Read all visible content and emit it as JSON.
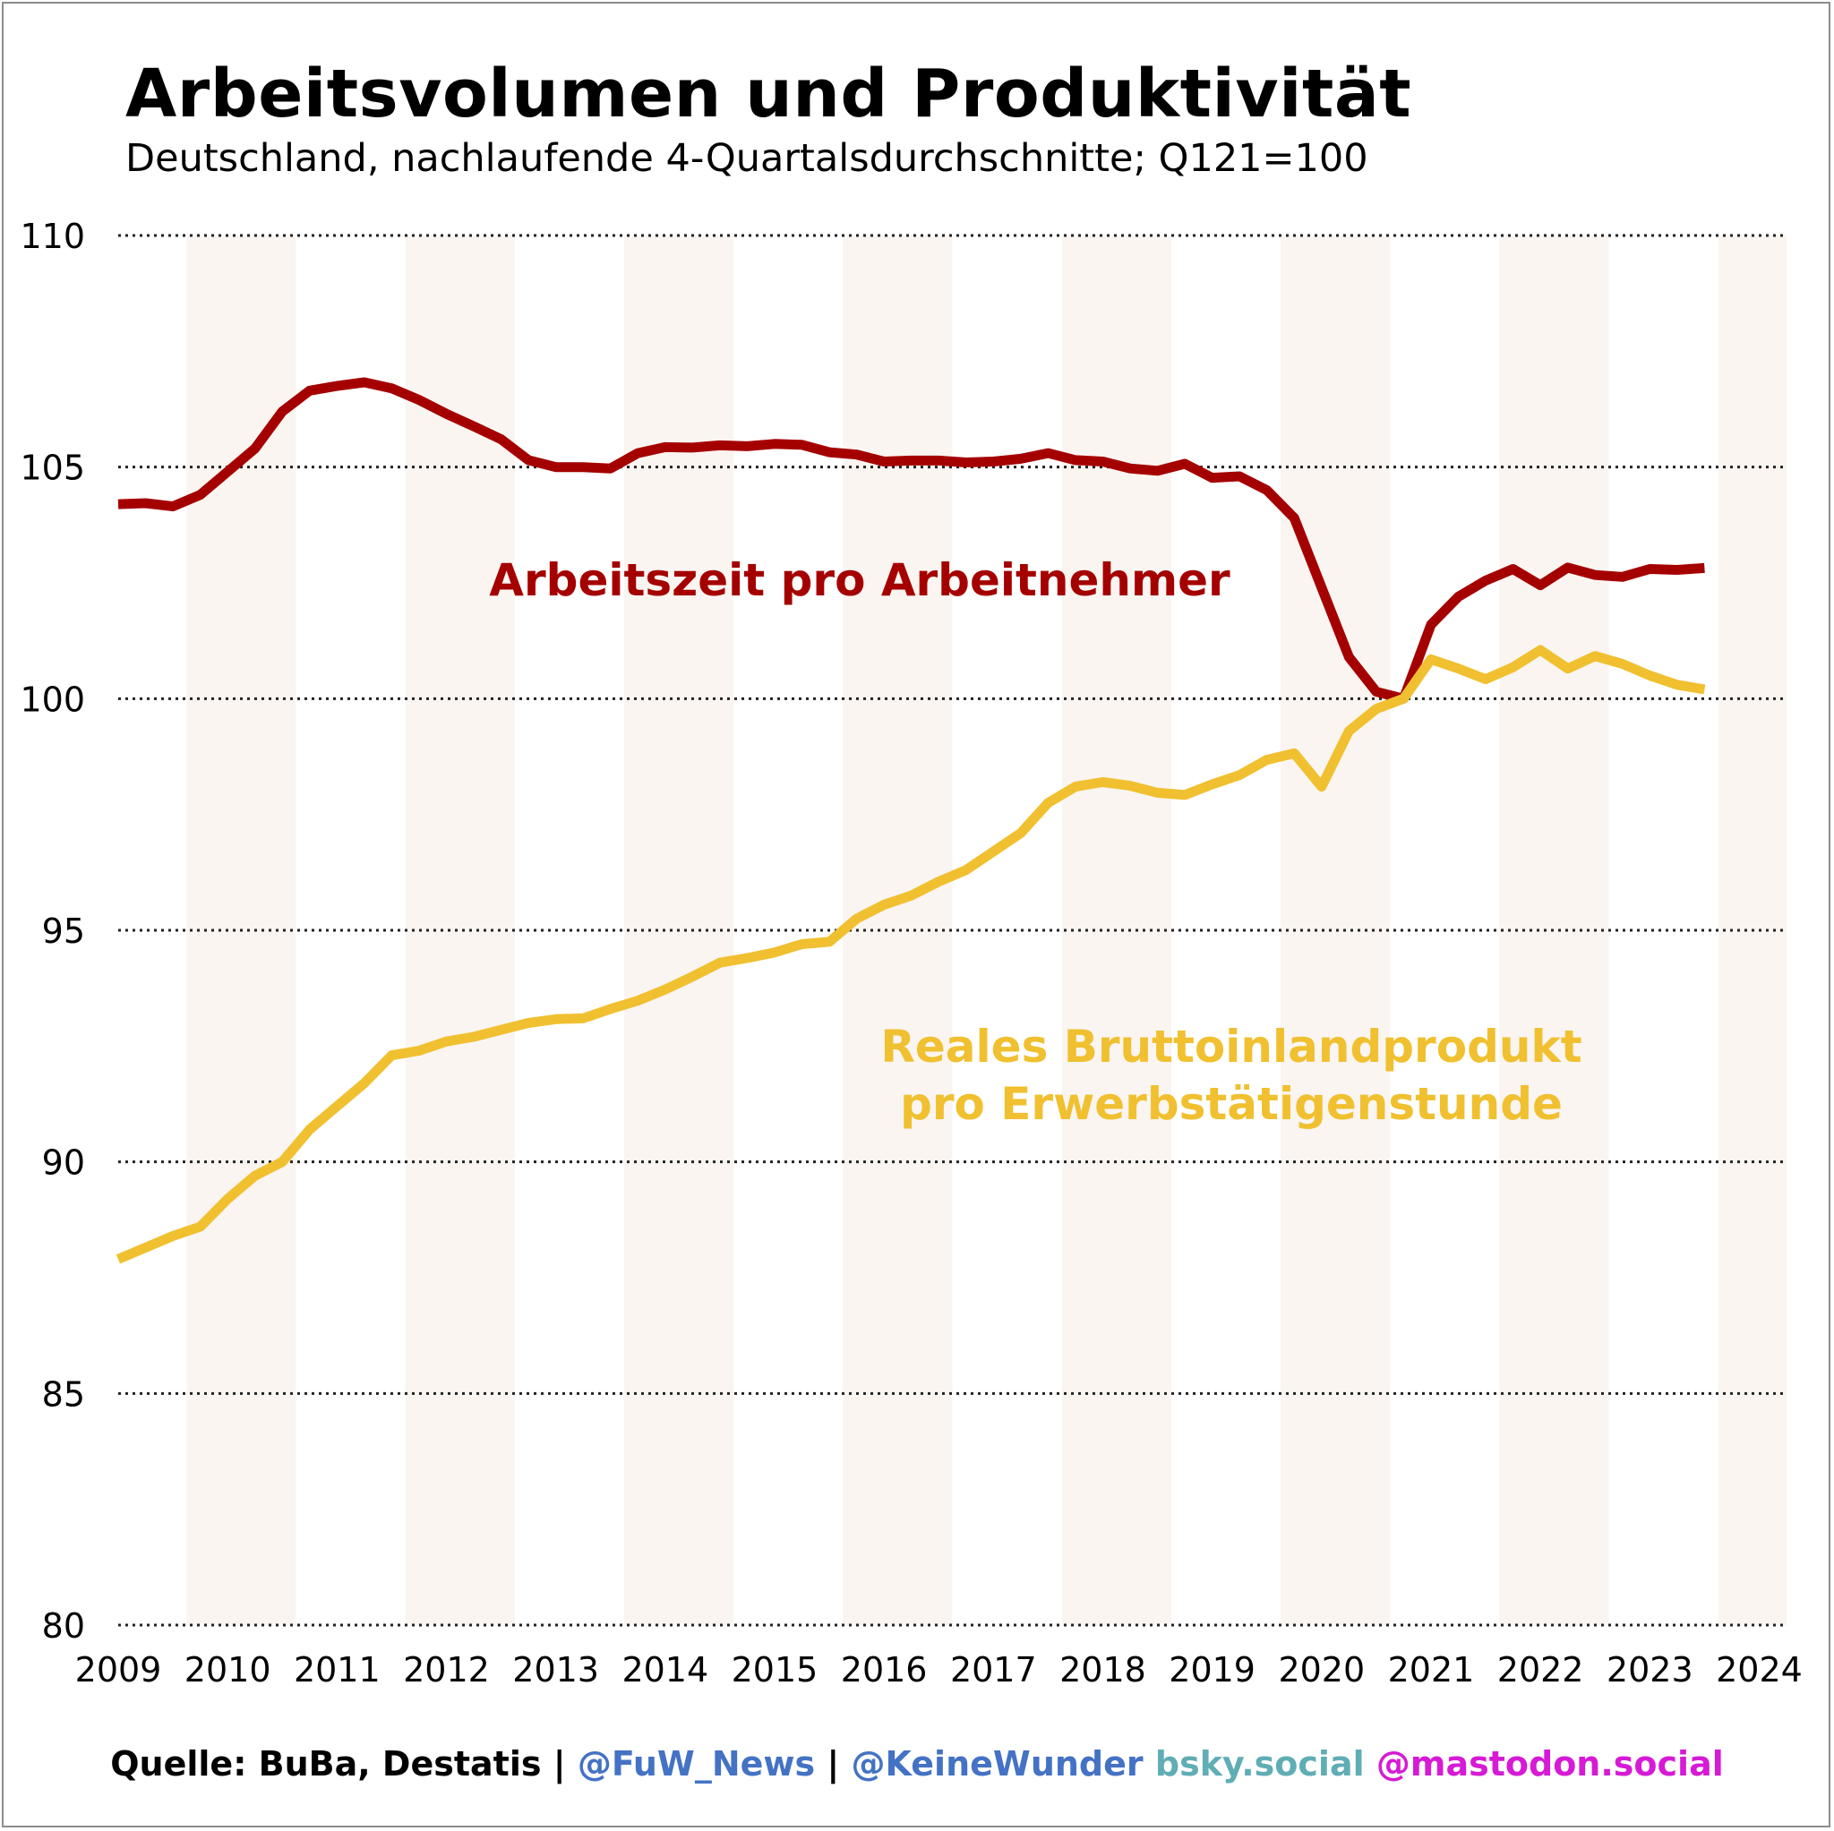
{
  "header": {
    "title": "Arbeitsvolumen und Produktivität",
    "subtitle": "Deutschland, nachlaufende 4-Quartalsdurchschnitte; Q121=100"
  },
  "footer": {
    "source": "Quelle: BuBa, Destatis",
    "sep1": " | ",
    "handle1": "@FuW_News",
    "sep2": " | ",
    "handle2": "@KeineWunder",
    "space": " ",
    "handle3": "bsky.social",
    "space2": " ",
    "handle4": "@mastodon.social"
  },
  "colors": {
    "arbeitszeit": "#a50000",
    "produktivitaet": "#f0c030",
    "band": "#faf5f1",
    "grid": "#222222"
  },
  "chart_data": {
    "type": "line",
    "title": "Arbeitsvolumen und Produktivität",
    "subtitle": "Deutschland, nachlaufende 4-Quartalsdurchschnitte; Q121=100",
    "xlabel": "",
    "ylabel": "",
    "xlim": [
      2009,
      2024.25
    ],
    "ylim": [
      80,
      110
    ],
    "yticks": [
      80,
      85,
      90,
      95,
      100,
      105,
      110
    ],
    "xticks": [
      2009,
      2010,
      2011,
      2012,
      2013,
      2014,
      2015,
      2016,
      2017,
      2018,
      2019,
      2020,
      2021,
      2022,
      2023,
      2024
    ],
    "grid": "horizontal dotted",
    "shaded_years": [
      2009.625,
      2011.625,
      2013.625,
      2015.625,
      2017.625,
      2019.625,
      2021.625,
      2023.625
    ],
    "x_start": 2009,
    "x_step": 0.25,
    "series": [
      {
        "name": "Arbeitszeit pro Arbeitnehmer",
        "label_line1": "Arbeitszeit pro Arbeitnehmer",
        "values": [
          104.2,
          104.22,
          104.15,
          104.4,
          104.9,
          105.4,
          106.2,
          106.65,
          106.75,
          106.83,
          106.7,
          106.45,
          106.15,
          105.88,
          105.6,
          105.15,
          105.0,
          105.0,
          104.97,
          105.3,
          105.43,
          105.42,
          105.47,
          105.45,
          105.5,
          105.48,
          105.32,
          105.27,
          105.12,
          105.14,
          105.14,
          105.1,
          105.12,
          105.18,
          105.3,
          105.15,
          105.12,
          104.97,
          104.92,
          105.07,
          104.77,
          104.8,
          104.5,
          103.9,
          102.4,
          100.9,
          100.15,
          100.0,
          101.6,
          102.2,
          102.55,
          102.8,
          102.45,
          102.83,
          102.67,
          102.63,
          102.8,
          102.78,
          102.82
        ]
      },
      {
        "name": "Reales Bruttoinlandprodukt pro Erwerbstätigenstunde",
        "label_line1": "Reales Bruttoinlandprodukt",
        "label_line2": "pro Erwerbstätigenstunde",
        "values": [
          87.9,
          88.15,
          88.4,
          88.6,
          89.2,
          89.7,
          90.0,
          90.7,
          91.2,
          91.7,
          92.3,
          92.4,
          92.6,
          92.7,
          92.85,
          93.0,
          93.08,
          93.1,
          93.3,
          93.48,
          93.72,
          94.0,
          94.3,
          94.4,
          94.52,
          94.7,
          94.75,
          95.25,
          95.55,
          95.75,
          96.05,
          96.3,
          96.7,
          97.1,
          97.75,
          98.1,
          98.2,
          98.12,
          97.97,
          97.92,
          98.15,
          98.35,
          98.68,
          98.82,
          98.1,
          99.3,
          99.78,
          100.0,
          100.85,
          100.65,
          100.42,
          100.68,
          101.05,
          100.65,
          100.92,
          100.75,
          100.5,
          100.3,
          100.2
        ]
      }
    ]
  }
}
